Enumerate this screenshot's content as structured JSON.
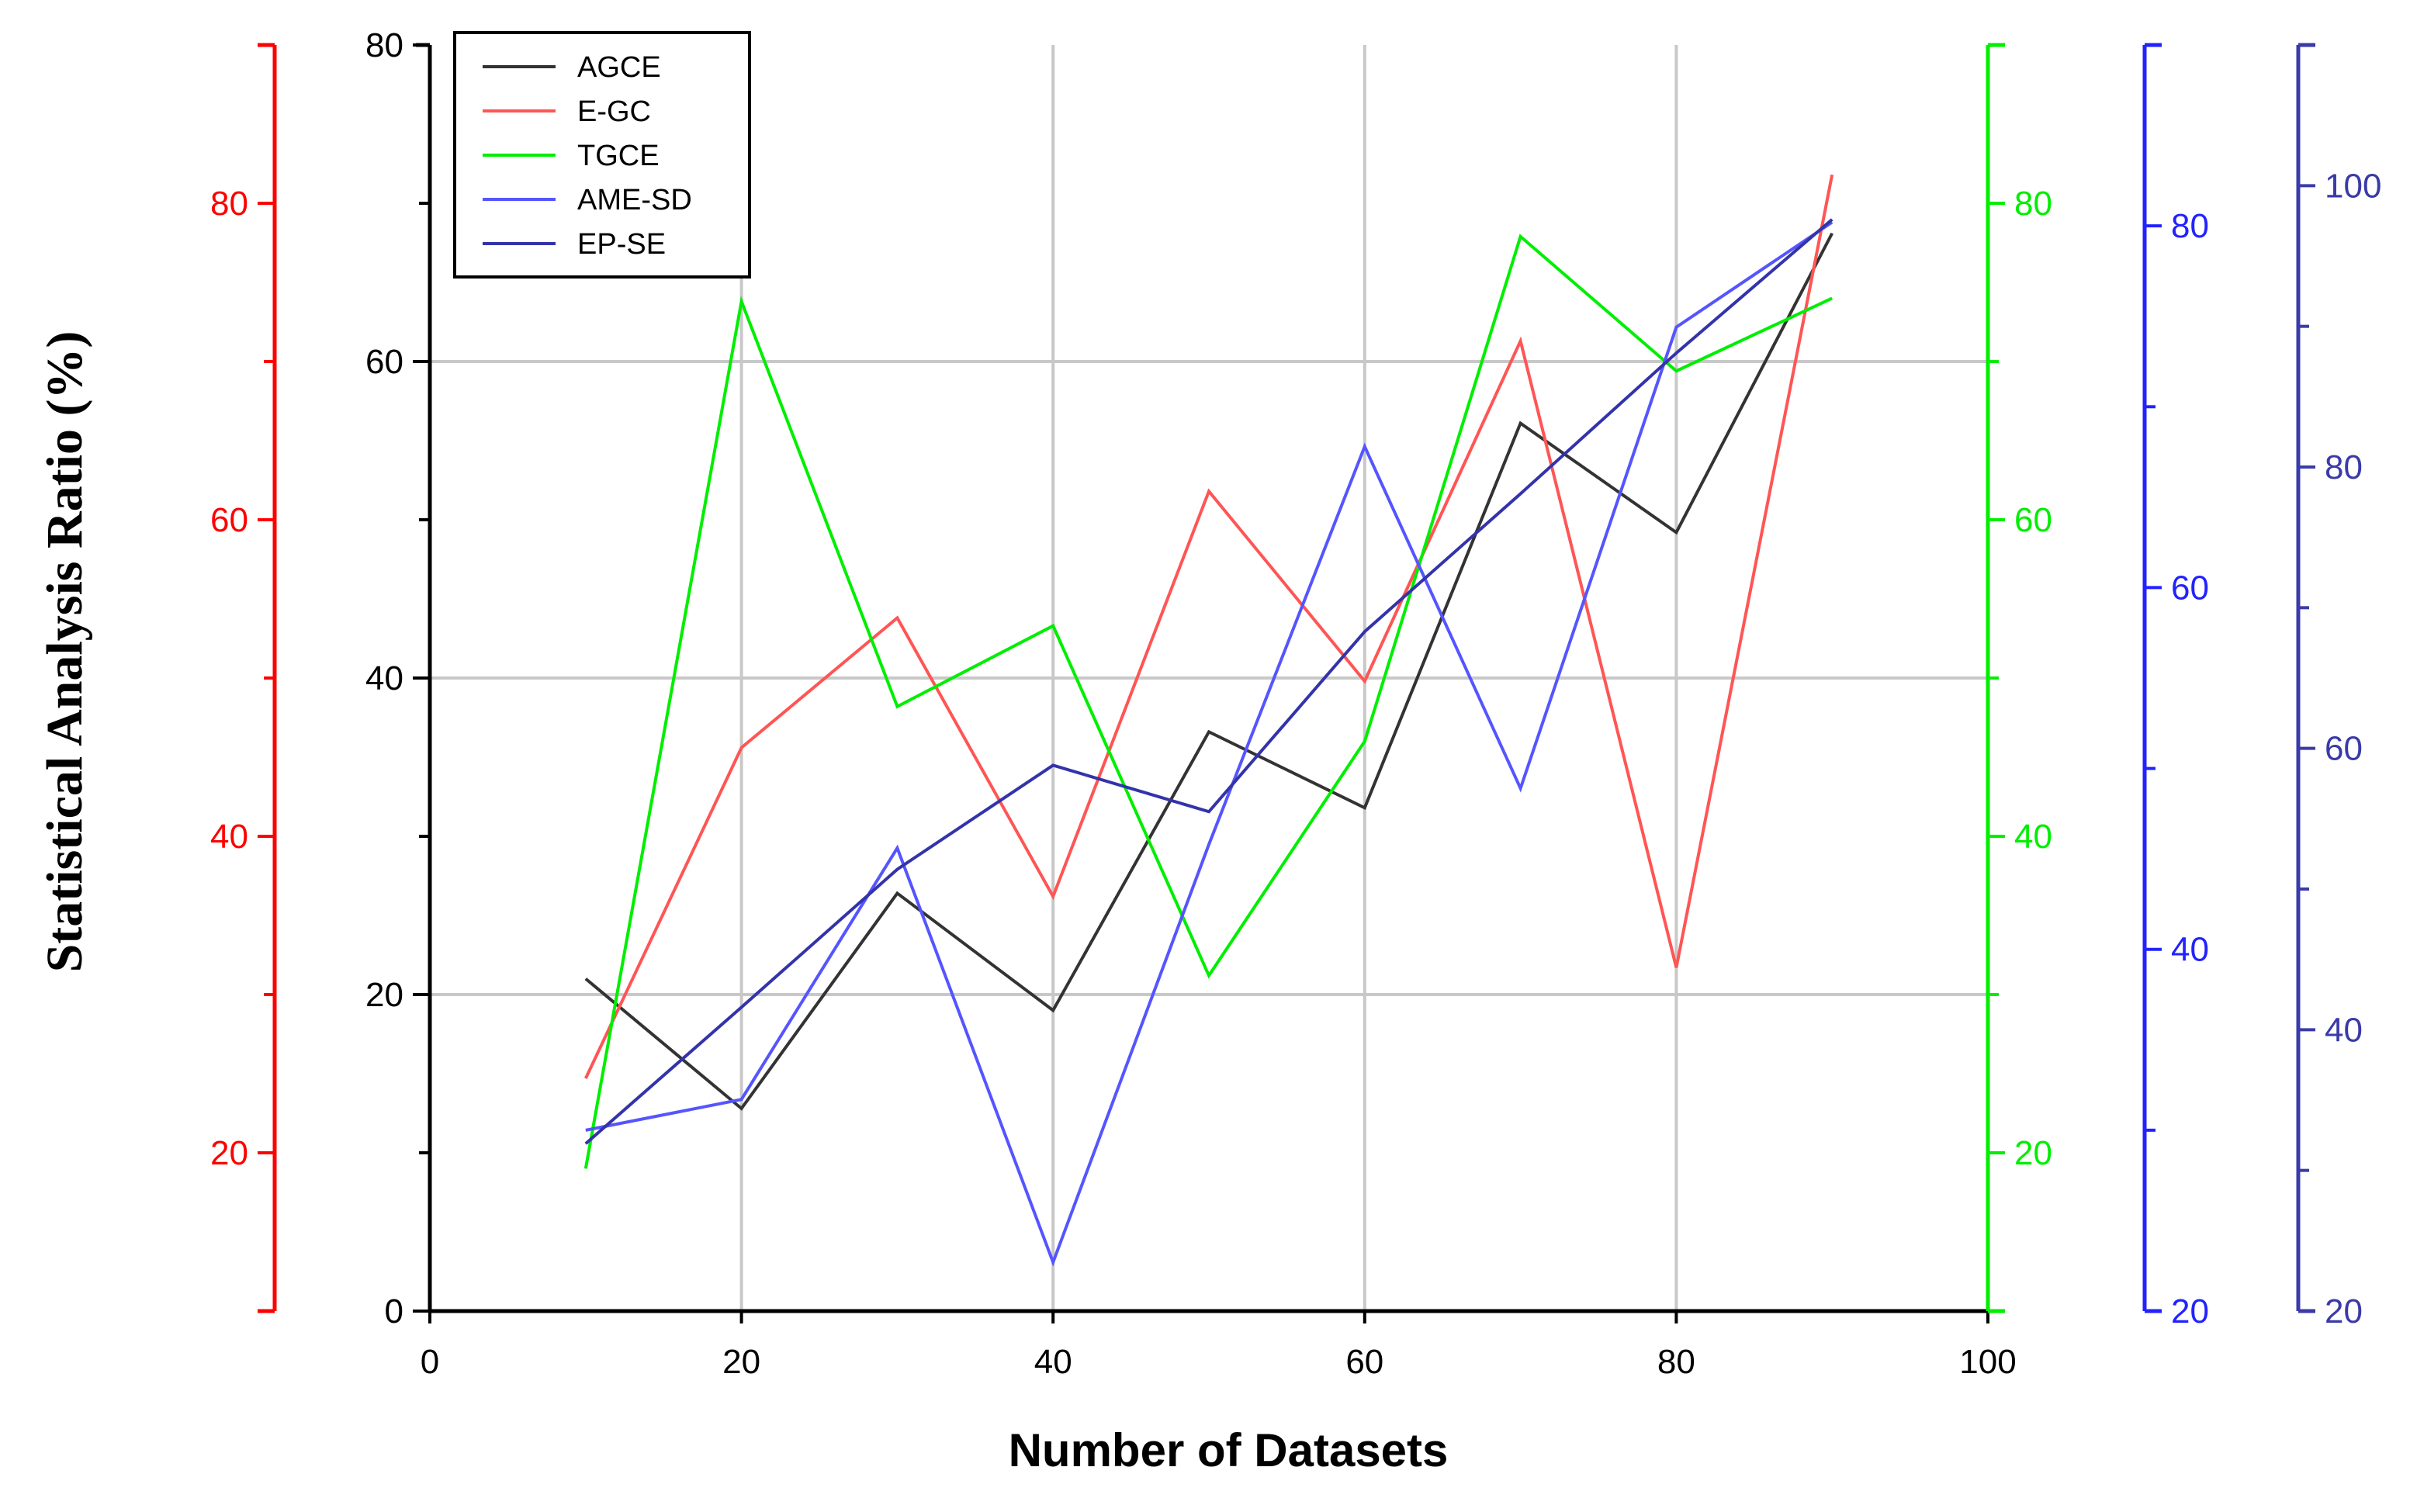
{
  "chart_data": {
    "type": "line",
    "title": "",
    "xlabel": "Number of Datasets",
    "ylabel": "Statistical Analysis Ratio (%)",
    "xlim": [
      0,
      100
    ],
    "xticks": [
      "0",
      "20",
      "40",
      "60",
      "80",
      "100"
    ],
    "grid": true,
    "legend_position": "top-left",
    "x": [
      10,
      20,
      30,
      40,
      50,
      60,
      70,
      80,
      90
    ],
    "axes": [
      {
        "id": "main",
        "side": "left",
        "color": "#000000",
        "range": [
          0,
          80
        ],
        "ticks": [
          "0",
          "20",
          "40",
          "60",
          "80"
        ]
      },
      {
        "id": "red",
        "side": "far-left",
        "color": "#ff0000",
        "range": [
          10,
          90
        ],
        "ticks": [
          "20",
          "40",
          "60",
          "80"
        ]
      },
      {
        "id": "green",
        "side": "right",
        "color": "#00ee00",
        "range": [
          10,
          90
        ],
        "ticks": [
          "20",
          "40",
          "60",
          "80"
        ]
      },
      {
        "id": "blue",
        "side": "far-right",
        "color": "#2222ff",
        "range": [
          20,
          90
        ],
        "ticks": [
          "20",
          "40",
          "60",
          "80"
        ]
      },
      {
        "id": "navy",
        "side": "farthest-right",
        "color": "#3a3aa8",
        "range": [
          20,
          110
        ],
        "ticks": [
          "20",
          "40",
          "60",
          "80",
          "100"
        ]
      }
    ],
    "series": [
      {
        "name": "AGCE",
        "color": "#333333",
        "axis": "main",
        "values": [
          21,
          12.8,
          26.4,
          19,
          36.6,
          31.8,
          56.1,
          49.2,
          68.1
        ]
      },
      {
        "name": "E-GC",
        "color": "#ff5555",
        "axis": "red",
        "values": [
          24.7,
          45.6,
          53.8,
          36.2,
          61.8,
          49.8,
          71.3,
          31.7,
          81.8
        ]
      },
      {
        "name": "TGCE",
        "color": "#00ee00",
        "axis": "green",
        "values": [
          19,
          73.8,
          48.2,
          53.3,
          31.2,
          46,
          77.9,
          69.4,
          74
        ]
      },
      {
        "name": "AME-SD",
        "color": "#5555ff",
        "axis": "blue",
        "values": [
          30,
          31.7,
          45.6,
          22.7,
          45.8,
          67.8,
          48.9,
          74.4,
          80.2
        ]
      },
      {
        "name": "EP-SE",
        "color": "#3333aa",
        "axis": "navy",
        "values": [
          31.9,
          41.6,
          51.4,
          58.8,
          55.5,
          68.3,
          78.1,
          88.1,
          97.6
        ]
      }
    ]
  }
}
